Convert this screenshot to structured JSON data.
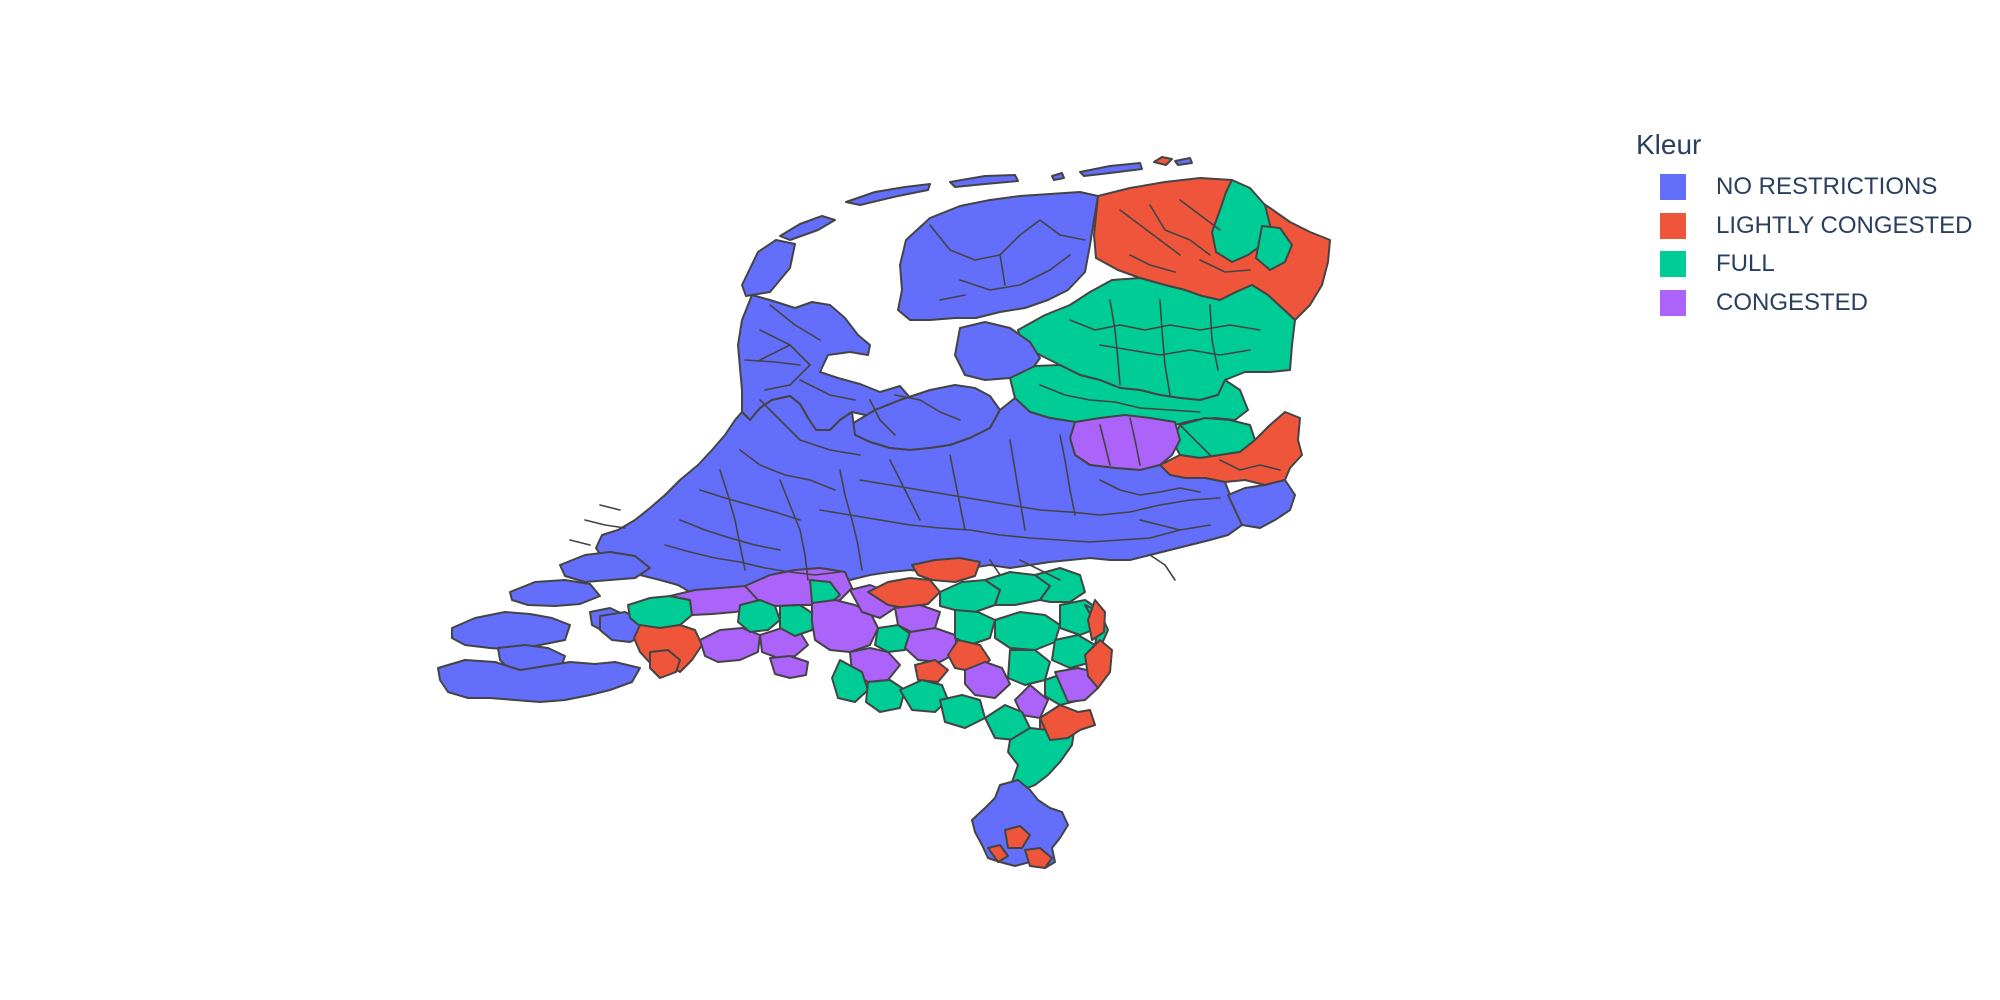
{
  "legend": {
    "title": "Kleur",
    "items": [
      {
        "label": "NO RESTRICTIONS",
        "color": "#636efa"
      },
      {
        "label": "LIGHTLY CONGESTED",
        "color": "#ef553b"
      },
      {
        "label": "FULL",
        "color": "#00cc96"
      },
      {
        "label": "CONGESTED",
        "color": "#ab63fa"
      }
    ]
  },
  "colors": {
    "border": "#444444",
    "background": "#ffffff",
    "legend_text": "#2a3f5f"
  }
}
